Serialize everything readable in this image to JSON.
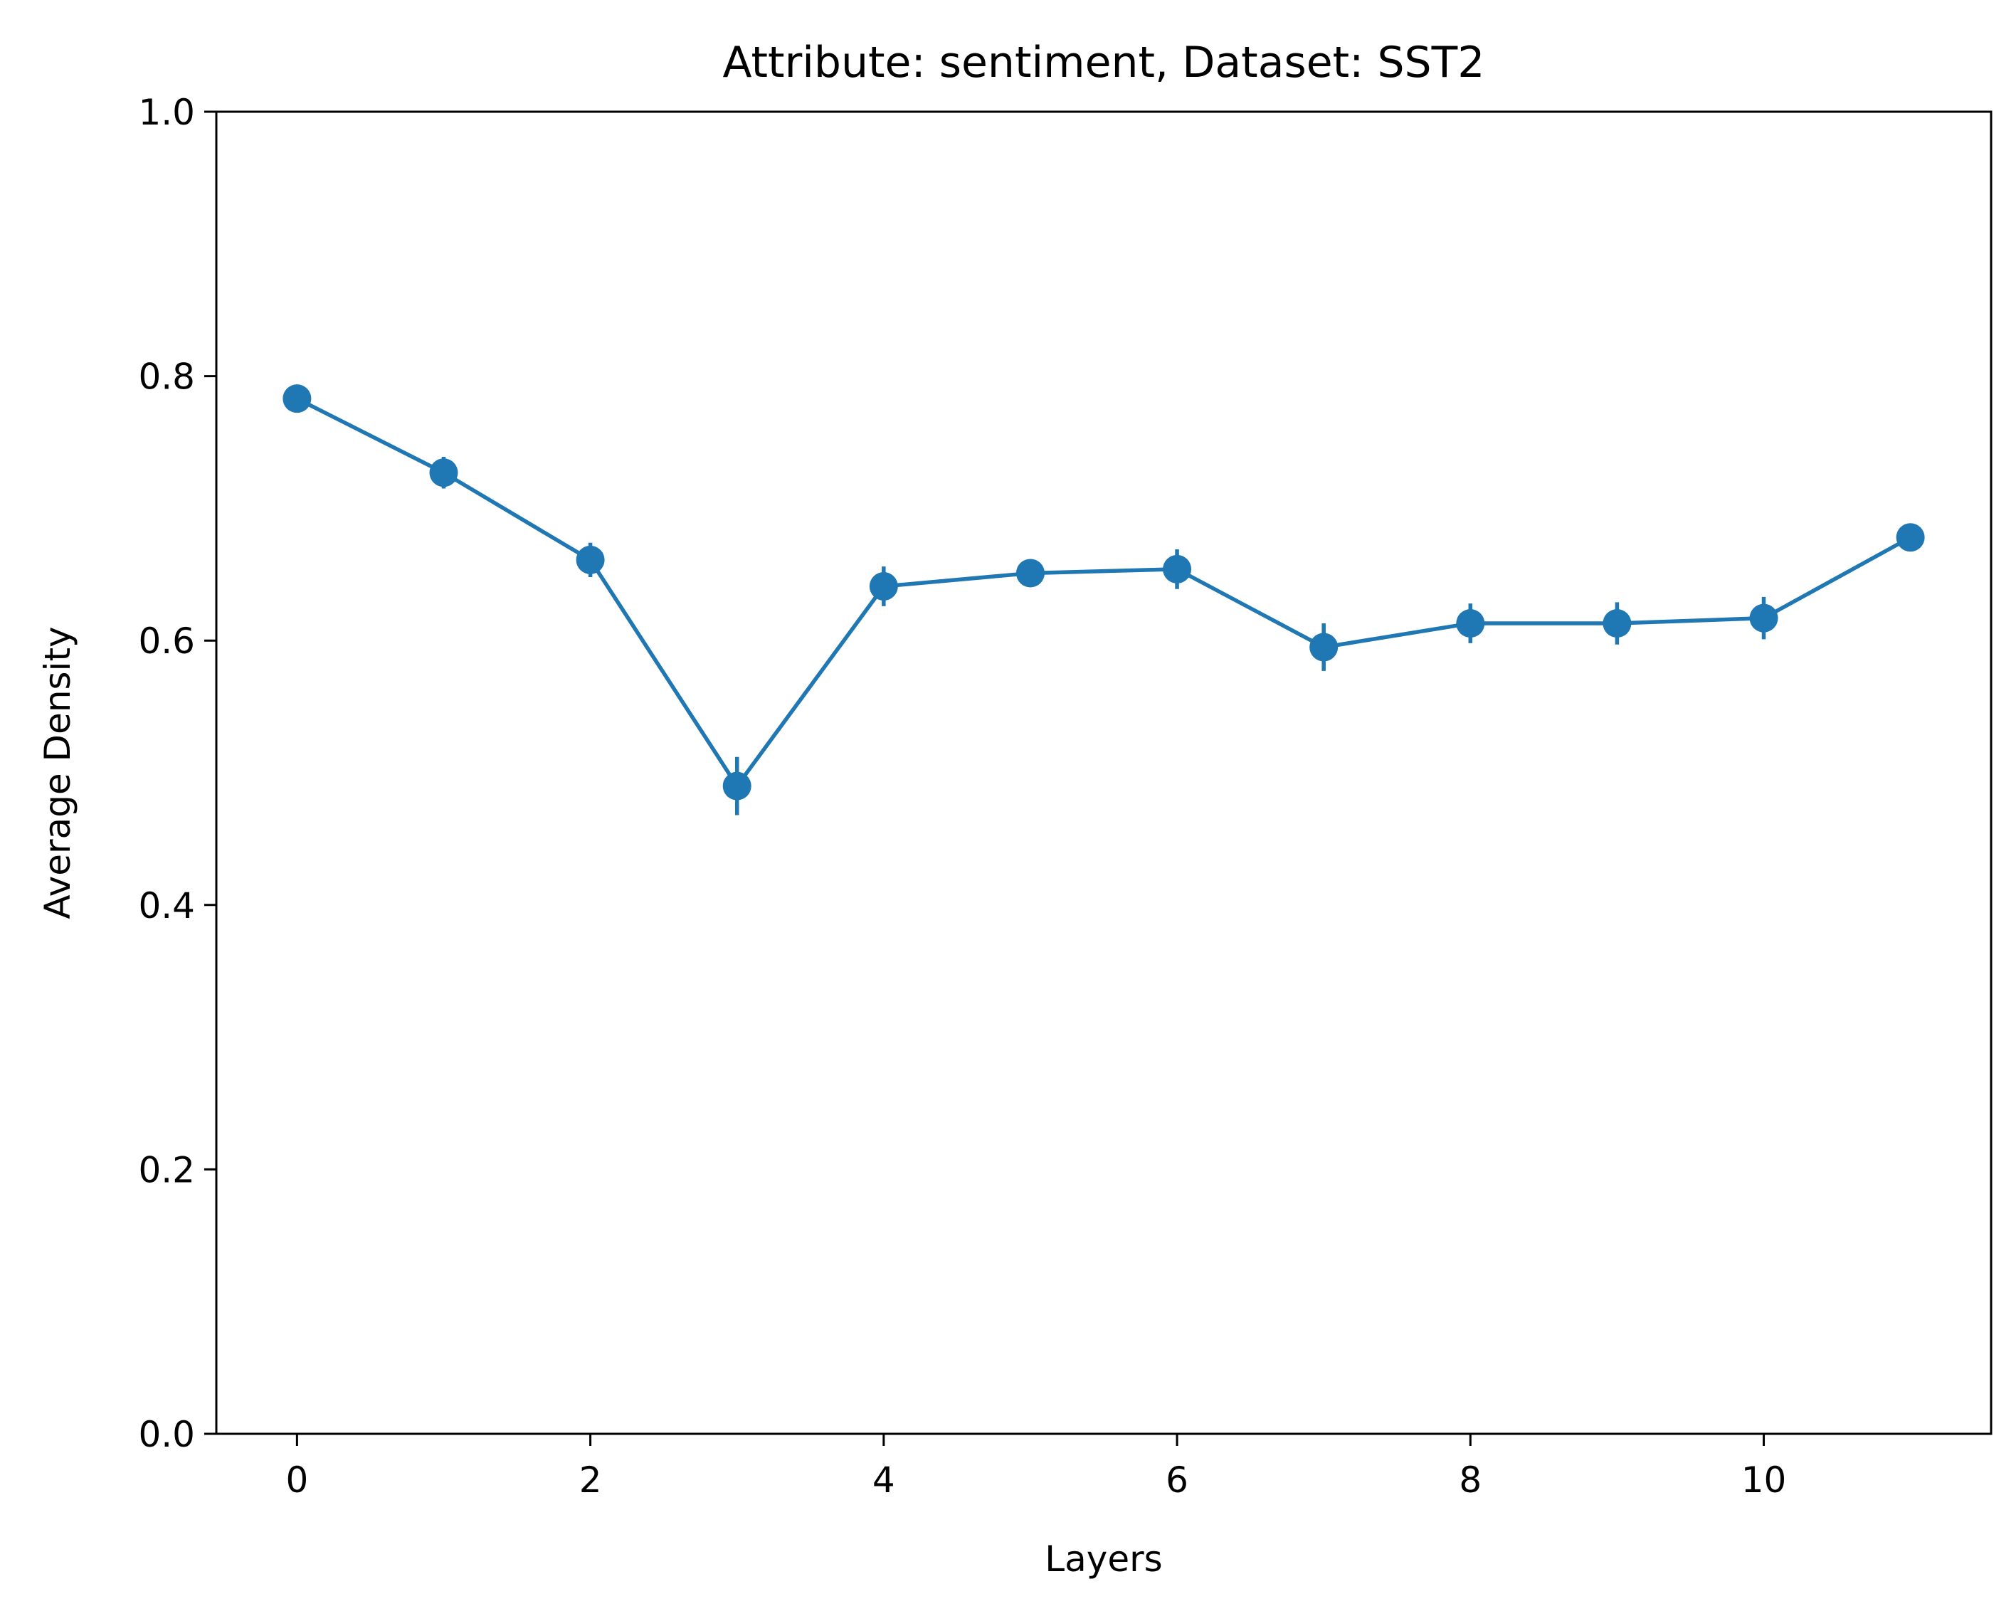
{
  "chart_data": {
    "type": "line",
    "title": "Attribute: sentiment, Dataset: SST2",
    "xlabel": "Layers",
    "ylabel": "Average Density",
    "xlim": [
      -0.55,
      11.55
    ],
    "ylim": [
      0.0,
      1.0
    ],
    "xticks": [
      0,
      2,
      4,
      6,
      8,
      10
    ],
    "xtick_labels": [
      "0",
      "2",
      "4",
      "6",
      "8",
      "10"
    ],
    "yticks": [
      0.0,
      0.2,
      0.4,
      0.6,
      0.8,
      1.0
    ],
    "ytick_labels": [
      "0.0",
      "0.2",
      "0.4",
      "0.6",
      "0.8",
      "1.0"
    ],
    "grid": false,
    "color": "#1f77b4",
    "series": [
      {
        "x": [
          0,
          1,
          2,
          3,
          4,
          5,
          6,
          7,
          8,
          9,
          10,
          11
        ],
        "y": [
          0.783,
          0.727,
          0.661,
          0.49,
          0.641,
          0.651,
          0.654,
          0.595,
          0.613,
          0.613,
          0.617,
          0.678
        ],
        "yerr": [
          0.004,
          0.012,
          0.013,
          0.022,
          0.015,
          0.01,
          0.015,
          0.018,
          0.015,
          0.016,
          0.016,
          0.005
        ]
      }
    ]
  }
}
